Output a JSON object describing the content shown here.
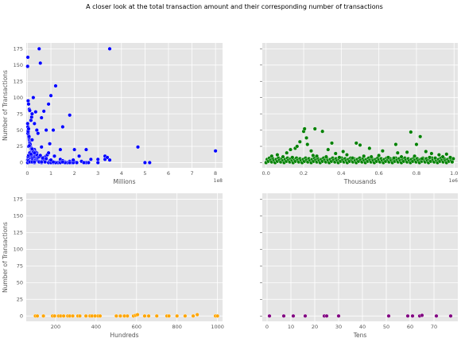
{
  "figure": {
    "title": "A closer look at the total transaction amount and their corresponding number of transactions"
  },
  "chart_data": [
    {
      "type": "scatter",
      "xlabel": "Millions",
      "ylabel": "Number of Transactions",
      "xlim": [
        -5000000,
        830000000
      ],
      "ylim": [
        -8,
        184
      ],
      "xticks": [
        0,
        100000000,
        200000000,
        300000000,
        400000000,
        500000000,
        600000000,
        700000000,
        800000000
      ],
      "xtick_labels": [
        "0",
        "1",
        "2",
        "3",
        "4",
        "5",
        "6",
        "7",
        "8"
      ],
      "x_offset_label": "1e8",
      "yticks": [
        0,
        25,
        50,
        75,
        100,
        125,
        150,
        175
      ],
      "ytick_labels": [
        "0",
        "25",
        "50",
        "75",
        "100",
        "125",
        "150",
        "175"
      ],
      "grid": true,
      "color": "#0000ff",
      "x": [
        1000000,
        2000000,
        3000000,
        5000000,
        8000000,
        10000000,
        15000000,
        18000000,
        20000000,
        25000000,
        30000000,
        35000000,
        40000000,
        45000000,
        50000000,
        55000000,
        60000000,
        70000000,
        80000000,
        90000000,
        100000000,
        110000000,
        120000000,
        140000000,
        150000000,
        180000000,
        200000000,
        220000000,
        250000000,
        270000000,
        300000000,
        330000000,
        350000000,
        500000000,
        520000000,
        1000000,
        2000000,
        3000000,
        4000000,
        5000000,
        6000000,
        7000000,
        8000000,
        9000000,
        10000000,
        11000000,
        12000000,
        13000000,
        14000000,
        15000000,
        17000000,
        20000000,
        22000000,
        25000000,
        28000000,
        30000000,
        35000000,
        40000000,
        45000000,
        50000000,
        55000000,
        60000000,
        65000000,
        70000000,
        80000000,
        85000000,
        90000000,
        95000000,
        100000000,
        105000000,
        110000000,
        120000000,
        130000000,
        140000000,
        150000000,
        160000000,
        170000000,
        180000000,
        190000000,
        200000000,
        210000000,
        230000000,
        250000000,
        5000000,
        10000000,
        20000000,
        30000000,
        40000000,
        50000000,
        2000000,
        3000000,
        5000000,
        7000000,
        12000000,
        18000000,
        25000000,
        35000000,
        45000000,
        70000000,
        2000000,
        4000000,
        6000000,
        8000000,
        10000000,
        15000000,
        20000000,
        30000000,
        1000000,
        3000000,
        5000000,
        10000000,
        2000000,
        4000000,
        8000000,
        3000000,
        6000000,
        10000000,
        1000000,
        5000000,
        15000000,
        25000000,
        3000000,
        7000000,
        20000000,
        1000000,
        8000000,
        4000000,
        30000000,
        60000000,
        90000000,
        100000000,
        120000000,
        140000000,
        160000000,
        180000000,
        195000000,
        210000000,
        240000000,
        260000000,
        300000000,
        330000000,
        340000000,
        470000000,
        800000000,
        10000000,
        20000000,
        30000000,
        50000000,
        60000000,
        75000000,
        110000000,
        150000000,
        3000000,
        5000000,
        10000000,
        15000000,
        25000000,
        40000000,
        50000000,
        65000000,
        80000000,
        100000000,
        8000000,
        20000000,
        35000000,
        55000000,
        95000000,
        195000000,
        350000000,
        60000000,
        30000000,
        115000000
      ],
      "y": [
        148,
        162,
        95,
        90,
        82,
        80,
        65,
        70,
        75,
        100,
        60,
        78,
        50,
        45,
        175,
        153,
        69,
        79,
        50,
        90,
        103,
        50,
        118,
        20,
        55,
        73,
        20,
        10,
        20,
        5,
        5,
        10,
        175,
        0,
        0,
        60,
        55,
        50,
        45,
        42,
        40,
        38,
        35,
        33,
        31,
        30,
        28,
        25,
        24,
        22,
        20,
        18,
        15,
        12,
        10,
        8,
        5,
        4,
        3,
        2,
        1,
        2,
        5,
        8,
        10,
        12,
        15,
        3,
        2,
        1,
        0,
        0,
        0,
        5,
        3,
        1,
        0,
        2,
        0,
        1,
        0,
        2,
        0,
        25,
        30,
        35,
        20,
        15,
        10,
        45,
        48,
        52,
        40,
        28,
        22,
        18,
        12,
        8,
        5,
        0,
        2,
        4,
        6,
        8,
        10,
        6,
        3,
        0,
        1,
        2,
        3,
        0,
        1,
        2,
        1,
        3,
        2,
        0,
        4,
        1,
        2,
        5,
        7,
        3,
        4,
        2,
        3,
        0,
        0,
        0,
        0,
        0,
        0,
        0,
        0,
        0,
        0,
        0,
        0,
        0,
        5,
        8,
        24,
        18,
        1,
        1,
        1,
        1,
        1,
        1,
        1,
        1,
        9,
        11,
        15,
        13,
        17,
        12,
        9,
        7,
        6,
        4,
        26,
        21,
        16,
        11,
        29,
        4,
        4,
        24,
        15,
        10
      ]
    },
    {
      "type": "scatter",
      "xlabel": "Thousands",
      "ylabel": "",
      "xlim": [
        -20000,
        1020000
      ],
      "ylim": [
        -8,
        184
      ],
      "xticks": [
        0,
        200000,
        400000,
        600000,
        800000,
        1000000
      ],
      "xtick_labels": [
        "0.0",
        "0.2",
        "0.4",
        "0.6",
        "0.8",
        "1.0"
      ],
      "x_offset_label": "1e6",
      "yticks": [
        0,
        25,
        50,
        75,
        100,
        125,
        150,
        175
      ],
      "ytick_labels": [
        "",
        "",
        "",
        "",
        "",
        "",
        "",
        ""
      ],
      "grid": true,
      "color": "#008000",
      "x": [
        200000,
        205000,
        260000,
        300000,
        770000,
        820000,
        215000,
        350000,
        180000,
        220000,
        480000,
        500000,
        690000,
        800000,
        130000,
        155000,
        165000,
        240000,
        330000,
        410000,
        550000,
        620000,
        700000,
        750000,
        850000,
        880000,
        920000,
        960000,
        30000,
        60000,
        90000,
        110000,
        140000,
        250000,
        270000,
        320000,
        370000,
        390000,
        430000,
        460000,
        520000,
        560000,
        600000,
        650000,
        680000,
        720000,
        790000,
        830000,
        870000,
        900000,
        940000,
        980000
      ],
      "y": [
        48,
        52,
        52,
        48,
        47,
        40,
        38,
        30,
        32,
        28,
        30,
        27,
        28,
        28,
        20,
        22,
        25,
        18,
        20,
        17,
        22,
        18,
        15,
        16,
        17,
        14,
        12,
        13,
        10,
        12,
        9,
        15,
        8,
        11,
        10,
        9,
        14,
        8,
        12,
        7,
        10,
        9,
        11,
        8,
        7,
        9,
        10,
        6,
        8,
        7,
        9,
        8
      ],
      "baseline_band": {
        "x_start": 0,
        "x_end": 1000000,
        "x_step": 6000,
        "y_min": 0,
        "y_max": 7
      }
    },
    {
      "type": "scatter",
      "xlabel": "Hundreds",
      "ylabel": "Number of Transactions",
      "xlim": [
        55,
        1025
      ],
      "ylim": [
        -8,
        184
      ],
      "xticks": [
        200,
        400,
        600,
        800,
        1000
      ],
      "xtick_labels": [
        "200",
        "400",
        "600",
        "800",
        "1000"
      ],
      "yticks": [
        0,
        25,
        50,
        75,
        100,
        125,
        150,
        175
      ],
      "ytick_labels": [
        "0",
        "25",
        "50",
        "75",
        "100",
        "125",
        "150",
        "175"
      ],
      "grid": true,
      "color": "#ffa500",
      "x": [
        100,
        110,
        140,
        185,
        195,
        215,
        225,
        240,
        260,
        270,
        285,
        310,
        320,
        350,
        370,
        380,
        395,
        410,
        420,
        500,
        520,
        540,
        555,
        585,
        595,
        605,
        640,
        660,
        700,
        750,
        760,
        800,
        840,
        880,
        900,
        990,
        1000
      ],
      "y": [
        0,
        0,
        0,
        0,
        0,
        0,
        0,
        0,
        0,
        0,
        0,
        0,
        0,
        0,
        0,
        0,
        0,
        0,
        0,
        0,
        0,
        0,
        0,
        0,
        1,
        2,
        0,
        0,
        0,
        0,
        0,
        0,
        0,
        0,
        2,
        0,
        0
      ]
    },
    {
      "type": "scatter",
      "xlabel": "Tens",
      "ylabel": "",
      "xlim": [
        -2,
        80
      ],
      "ylim": [
        -8,
        184
      ],
      "xticks": [
        0,
        10,
        20,
        30,
        40,
        50,
        60,
        70
      ],
      "xtick_labels": [
        "0",
        "10",
        "20",
        "30",
        "40",
        "50",
        "60",
        "70"
      ],
      "yticks": [
        0,
        25,
        50,
        75,
        100,
        125,
        150,
        175
      ],
      "ytick_labels": [
        "",
        "",
        "",
        "",
        "",
        "",
        "",
        ""
      ],
      "grid": true,
      "color": "#800080",
      "x": [
        1,
        7,
        11,
        16,
        24,
        25,
        30,
        51,
        59,
        61,
        64,
        65,
        71,
        77
      ],
      "y": [
        0,
        0,
        0,
        0,
        0,
        0,
        0,
        0,
        0,
        0,
        0,
        1,
        0,
        0
      ]
    }
  ]
}
